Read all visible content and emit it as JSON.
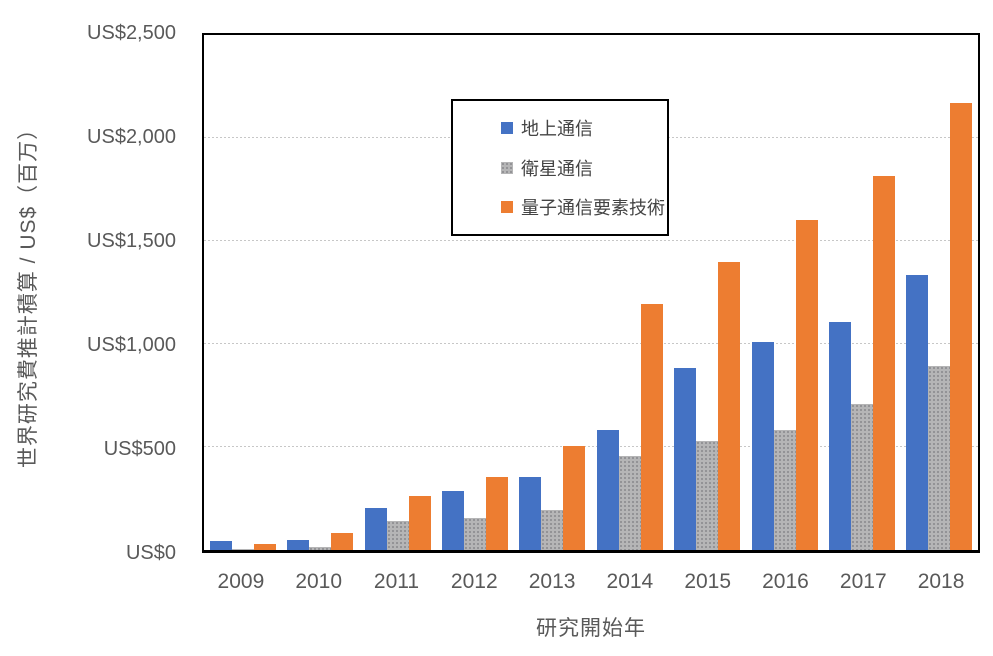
{
  "chart_data": {
    "type": "bar",
    "title": "",
    "xlabel": "研究開始年",
    "ylabel": "世界研究費推計積算 / US$（百万）",
    "categories": [
      "2009",
      "2010",
      "2011",
      "2012",
      "2013",
      "2014",
      "2015",
      "2016",
      "2017",
      "2018"
    ],
    "series": [
      {
        "name": "地上通信",
        "color": "#4472C4",
        "fill": "solid",
        "values": [
          45,
          50,
          205,
          285,
          355,
          585,
          885,
          1010,
          1105,
          1335
        ]
      },
      {
        "name": "衛星通信",
        "color": "#ABABAB",
        "fill": "dotted-pattern",
        "values": [
          5,
          15,
          140,
          155,
          195,
          455,
          530,
          585,
          710,
          895
        ]
      },
      {
        "name": "量子通信要素技術",
        "color": "#ED7D31",
        "fill": "solid",
        "values": [
          30,
          85,
          260,
          355,
          505,
          1195,
          1400,
          1600,
          1815,
          2170
        ]
      }
    ],
    "ylim": [
      0,
      2500
    ],
    "ytick_step": 500,
    "ytick_labels_top_to_bottom": [
      "US$2,500",
      "US$2,000",
      "US$1,500",
      "US$1,000",
      "US$500",
      "US$0"
    ],
    "grid": true,
    "gridline_color": "#c7c7c7",
    "axis_text_color": "#595959",
    "frame_color": "#000000",
    "legend_position": "top-left-inside"
  }
}
